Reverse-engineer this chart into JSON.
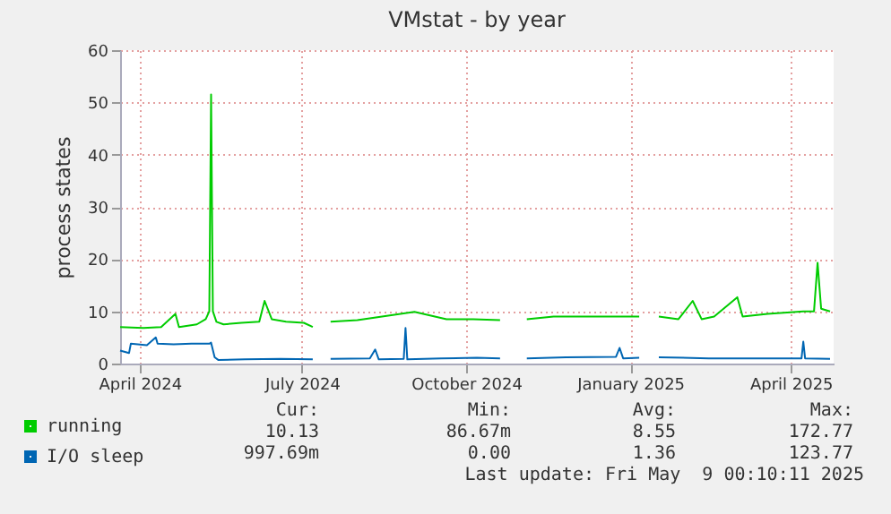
{
  "chart_data": {
    "type": "line",
    "title": "VMstat - by year",
    "ylabel": "process states",
    "xlim": [
      "2024-04-04",
      "2025-05-09"
    ],
    "xticks": [
      {
        "value": "2024-04-15",
        "label": "April 2024"
      },
      {
        "value": "2024-07-15",
        "label": "July 2024"
      },
      {
        "value": "2024-10-15",
        "label": "October 2024"
      },
      {
        "value": "2025-01-15",
        "label": "January 2025"
      },
      {
        "value": "2025-04-15",
        "label": "April 2025"
      }
    ],
    "ylim": [
      0,
      60
    ],
    "yticks": [
      0,
      10,
      20,
      30,
      40,
      50,
      60
    ],
    "grid": true,
    "legend": "bottom",
    "line_style": "solid",
    "series": [
      {
        "name": "running",
        "color": "#00cc00",
        "x": [
          "2024-04-04",
          "2024-04-17",
          "2024-04-27",
          "2024-05-05",
          "2024-05-07",
          "2024-05-17",
          "2024-05-22",
          "2024-05-24",
          "2024-05-25",
          "2024-05-26",
          "2024-05-28",
          "2024-06-01",
          "2024-06-11",
          "2024-06-21",
          "2024-06-24",
          "2024-06-28",
          "2024-07-06",
          "2024-07-16",
          "2024-07-21",
          "2024-07-26",
          "2024-07-31",
          "2024-08-15",
          "2024-09-16",
          "2024-10-04",
          "2024-10-19",
          "2024-11-03",
          "2024-11-10",
          "2024-11-18",
          "2024-12-03",
          "2024-12-23",
          "2025-01-20",
          "2025-01-25",
          "2025-01-31",
          "2025-02-11",
          "2025-02-19",
          "2025-02-24",
          "2025-03-03",
          "2025-03-16",
          "2025-03-19",
          "2025-04-02",
          "2025-04-22",
          "2025-04-28",
          "2025-04-30",
          "2025-05-02",
          "2025-05-07"
        ],
        "values": [
          7,
          6.8,
          7,
          9.5,
          7,
          7.5,
          8.5,
          10,
          51.5,
          10,
          8,
          7.5,
          7.8,
          8,
          12,
          8.5,
          8,
          7.8,
          7,
          null,
          8,
          8.3,
          9.9,
          8.5,
          8.5,
          8.3,
          null,
          8.5,
          9,
          9,
          9,
          null,
          9,
          8.5,
          12,
          8.5,
          9,
          12.7,
          9,
          9.5,
          10,
          10,
          19.3,
          10.5,
          10
        ]
      },
      {
        "name": "I/O sleep",
        "color": "#0066b3",
        "x": [
          "2024-04-04",
          "2024-04-09",
          "2024-04-10",
          "2024-04-19",
          "2024-04-24",
          "2024-04-25",
          "2024-05-04",
          "2024-05-14",
          "2024-05-24",
          "2024-05-25",
          "2024-05-27",
          "2024-05-29",
          "2024-06-13",
          "2024-07-03",
          "2024-07-21",
          "2024-07-25",
          "2024-07-31",
          "2024-08-22",
          "2024-08-25",
          "2024-08-27",
          "2024-09-10",
          "2024-09-11",
          "2024-09-12",
          "2024-10-01",
          "2024-10-21",
          "2024-11-03",
          "2024-11-10",
          "2024-11-18",
          "2024-12-10",
          "2025-01-07",
          "2025-01-09",
          "2025-01-11",
          "2025-01-20",
          "2025-01-25",
          "2025-01-31",
          "2025-02-28",
          "2025-03-30",
          "2025-04-21",
          "2025-04-22",
          "2025-04-23",
          "2025-05-07"
        ],
        "values": [
          2.5,
          2,
          3.8,
          3.5,
          5,
          3.8,
          3.7,
          3.8,
          3.8,
          4,
          1.2,
          0.7,
          0.8,
          0.9,
          0.8,
          null,
          0.9,
          1,
          2.7,
          0.8,
          0.9,
          6.8,
          0.8,
          1,
          1.1,
          1,
          null,
          1,
          1.2,
          1.3,
          3,
          1,
          1.1,
          null,
          1.2,
          1,
          1,
          1,
          4.2,
          1,
          0.9
        ]
      }
    ],
    "annotations": [
      "Cur:",
      "Min:",
      "Avg:",
      "Max:",
      "10.13",
      "86.67m",
      "8.55",
      "172.77",
      "997.69m",
      "0.00",
      "1.36",
      "123.77",
      "Last update: Fri May  9 00:10:11 2025"
    ]
  }
}
